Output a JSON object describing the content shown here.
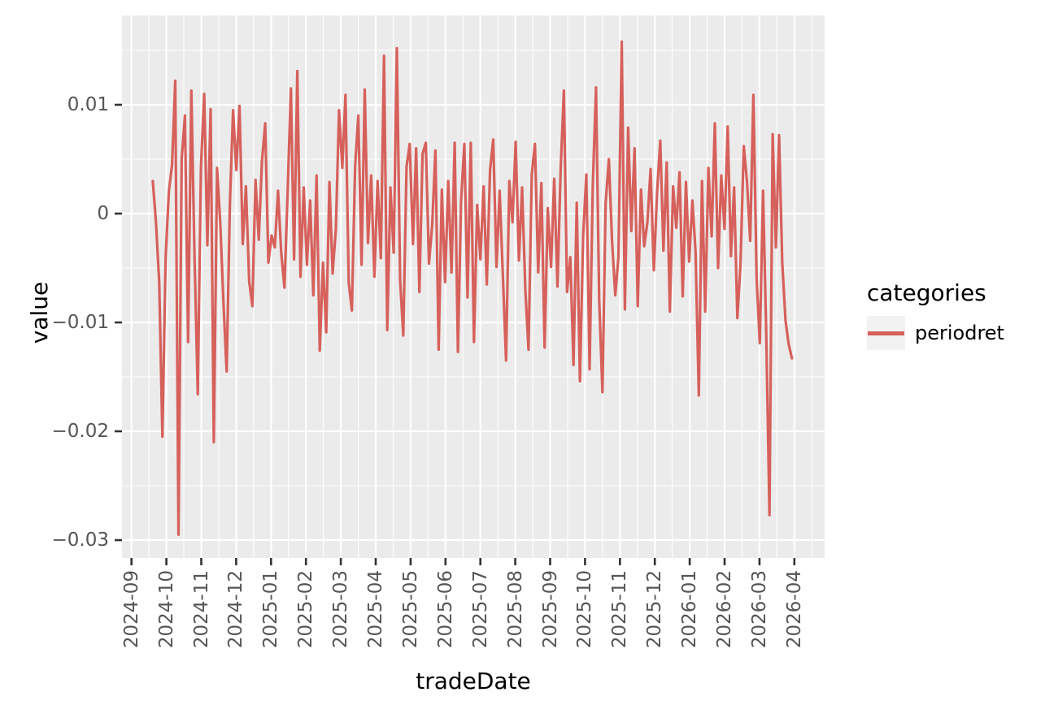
{
  "chart_data": {
    "type": "line",
    "title": "",
    "xlabel": "tradeDate",
    "ylabel": "value",
    "legend_title": "categories",
    "legend_position": "right",
    "grid": "major-and-minor",
    "panel_bg": "#EBEBEB",
    "grid_color": "#FFFFFF",
    "tick_mark_color": "#333333",
    "tick_label_color": "#555555",
    "line_color": "#D6605B",
    "legend_key_bg": "#F2F2F2",
    "x_tick_labels": [
      "2024-09",
      "2024-10",
      "2024-11",
      "2024-12",
      "2025-01",
      "2025-02",
      "2025-03",
      "2025-04",
      "2025-05",
      "2025-06",
      "2025-07",
      "2025-08",
      "2025-09",
      "2025-10",
      "2025-11",
      "2025-12",
      "2026-01",
      "2026-02",
      "2026-03",
      "2026-04"
    ],
    "y_tick_labels": [
      "0.01",
      "0",
      "−0.01",
      "−0.02",
      "−0.03"
    ],
    "y_tick_values": [
      0.01,
      0,
      -0.01,
      -0.02,
      -0.03
    ],
    "y_minor_values": [
      0.015,
      0.005,
      -0.005,
      -0.015,
      -0.025
    ],
    "ylim": [
      -0.0316,
      0.0182
    ],
    "x_start_month_frac": 0.61,
    "x_end_month_frac": 18.93,
    "series": [
      {
        "name": "periodret",
        "values": [
          0.003,
          -0.0008,
          -0.0063,
          -0.0205,
          -0.004,
          0.002,
          0.0045,
          0.0122,
          -0.0295,
          0.005,
          0.009,
          -0.0118,
          0.0113,
          -0.004,
          -0.0166,
          0.0042,
          0.011,
          -0.0029,
          0.0096,
          -0.021,
          0.0042,
          -0.0008,
          -0.0082,
          -0.0145,
          0.0009,
          0.0095,
          0.004,
          0.0099,
          -0.0028,
          0.0025,
          -0.0062,
          -0.0085,
          0.0031,
          -0.0024,
          0.0048,
          0.0083,
          -0.0045,
          -0.002,
          -0.0031,
          0.0021,
          -0.0036,
          -0.0068,
          0.002,
          0.0115,
          -0.0042,
          0.0131,
          -0.0058,
          0.0024,
          -0.0047,
          0.0012,
          -0.0075,
          0.0035,
          -0.0126,
          -0.0045,
          -0.0109,
          0.0029,
          -0.0055,
          -0.0014,
          0.0095,
          0.0042,
          0.0109,
          -0.0063,
          -0.0089,
          0.0044,
          0.009,
          -0.0047,
          0.0114,
          -0.0027,
          0.0035,
          -0.0058,
          0.003,
          -0.0041,
          0.0145,
          -0.0107,
          0.0024,
          -0.0036,
          0.0152,
          -0.0061,
          -0.0112,
          0.0043,
          0.0064,
          -0.0028,
          0.006,
          -0.0072,
          0.0055,
          0.0065,
          -0.0046,
          -0.001,
          0.0058,
          -0.0125,
          0.0022,
          -0.0063,
          0.003,
          -0.0054,
          0.0065,
          -0.0127,
          0.0012,
          0.0064,
          -0.0077,
          0.0065,
          -0.0118,
          0.0008,
          -0.0042,
          0.0025,
          -0.0065,
          0.004,
          0.0068,
          -0.0049,
          0.0021,
          -0.0058,
          -0.0135,
          0.003,
          -0.0008,
          0.0066,
          -0.0043,
          0.0024,
          -0.007,
          -0.0125,
          0.0036,
          0.0064,
          -0.0054,
          0.0028,
          -0.0123,
          0.0005,
          -0.0049,
          0.0032,
          -0.0067,
          0.004,
          0.0113,
          -0.0072,
          -0.004,
          -0.0139,
          0.001,
          -0.0154,
          -0.002,
          0.0036,
          -0.0143,
          0.0025,
          0.0116,
          -0.0079,
          -0.0164,
          0.0009,
          0.005,
          -0.0025,
          -0.0075,
          -0.004,
          0.0158,
          -0.0088,
          0.0079,
          -0.0016,
          0.006,
          -0.0085,
          0.0022,
          -0.003,
          -0.0008,
          0.0041,
          -0.0052,
          0.0018,
          0.0067,
          -0.0034,
          0.0047,
          -0.009,
          0.0025,
          -0.0013,
          0.0038,
          -0.0076,
          0.0029,
          -0.0044,
          0.0012,
          -0.0035,
          -0.0167,
          0.003,
          -0.009,
          0.0042,
          -0.0021,
          0.0083,
          -0.005,
          0.0035,
          -0.0014,
          0.008,
          -0.0039,
          0.0024,
          -0.0096,
          -0.0046,
          0.0062,
          0.003,
          -0.0025,
          0.0109,
          -0.006,
          -0.0119,
          0.0021,
          -0.011,
          -0.0277,
          0.0073,
          -0.0031,
          0.0072,
          -0.0045,
          -0.0098,
          -0.012,
          -0.0133
        ]
      }
    ]
  },
  "legend": {
    "title": "categories",
    "entries": [
      {
        "label": "periodret"
      }
    ]
  },
  "axes": {
    "x_title": "tradeDate",
    "y_title": "value"
  }
}
